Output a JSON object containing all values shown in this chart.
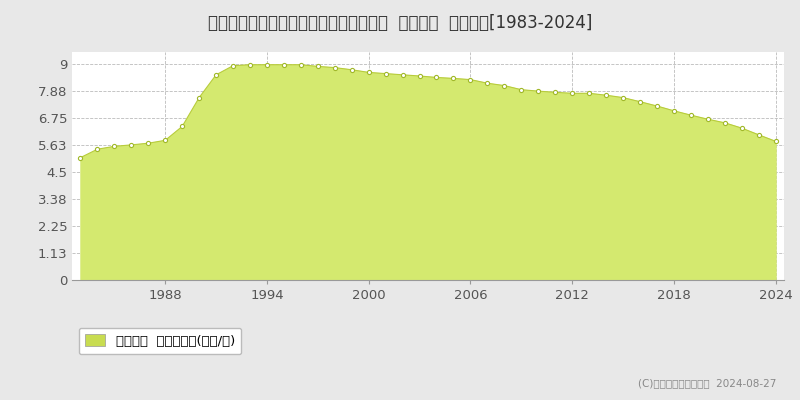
{
  "title": "栃木県足利市菅田町字東根８６９番１外  地価公示  地価推移[1983-2024]",
  "years": [
    1983,
    1984,
    1985,
    1986,
    1987,
    1988,
    1989,
    1990,
    1991,
    1992,
    1993,
    1994,
    1995,
    1996,
    1997,
    1998,
    1999,
    2000,
    2001,
    2002,
    2003,
    2004,
    2005,
    2006,
    2007,
    2008,
    2009,
    2010,
    2011,
    2012,
    2013,
    2014,
    2015,
    2016,
    2017,
    2018,
    2019,
    2020,
    2021,
    2022,
    2023,
    2024
  ],
  "values": [
    5.1,
    5.45,
    5.57,
    5.63,
    5.7,
    5.82,
    6.4,
    7.6,
    8.55,
    8.93,
    8.97,
    8.97,
    8.97,
    8.97,
    8.9,
    8.85,
    8.76,
    8.65,
    8.6,
    8.55,
    8.5,
    8.44,
    8.4,
    8.35,
    8.2,
    8.1,
    7.93,
    7.87,
    7.82,
    7.78,
    7.78,
    7.7,
    7.6,
    7.43,
    7.25,
    7.05,
    6.87,
    6.7,
    6.55,
    6.33,
    6.05,
    5.78
  ],
  "fill_color": "#d4e96f",
  "line_color": "#b8cc3c",
  "marker_color": "#ffffff",
  "marker_edge_color": "#a0b828",
  "yticks": [
    0,
    1.13,
    2.25,
    3.38,
    4.5,
    5.63,
    6.75,
    7.88,
    9
  ],
  "ytick_labels": [
    "0",
    "1.13",
    "2.25",
    "3.38",
    "4.5",
    "5.63",
    "6.75",
    "7.88",
    "9"
  ],
  "xticks": [
    1988,
    1994,
    2000,
    2006,
    2012,
    2018,
    2024
  ],
  "xlim": [
    1982.5,
    2024.5
  ],
  "ylim": [
    0,
    9.5
  ],
  "bg_color": "#e8e8e8",
  "plot_bg_color": "#ffffff",
  "grid_color": "#bbbbbb",
  "legend_label": "地価公示  平均坪単価(万円/坪)",
  "legend_color": "#c8dc50",
  "copyright_text": "(C)土地価格ドットコム  2024-08-27",
  "title_fontsize": 12,
  "tick_fontsize": 9.5,
  "legend_fontsize": 9.5
}
